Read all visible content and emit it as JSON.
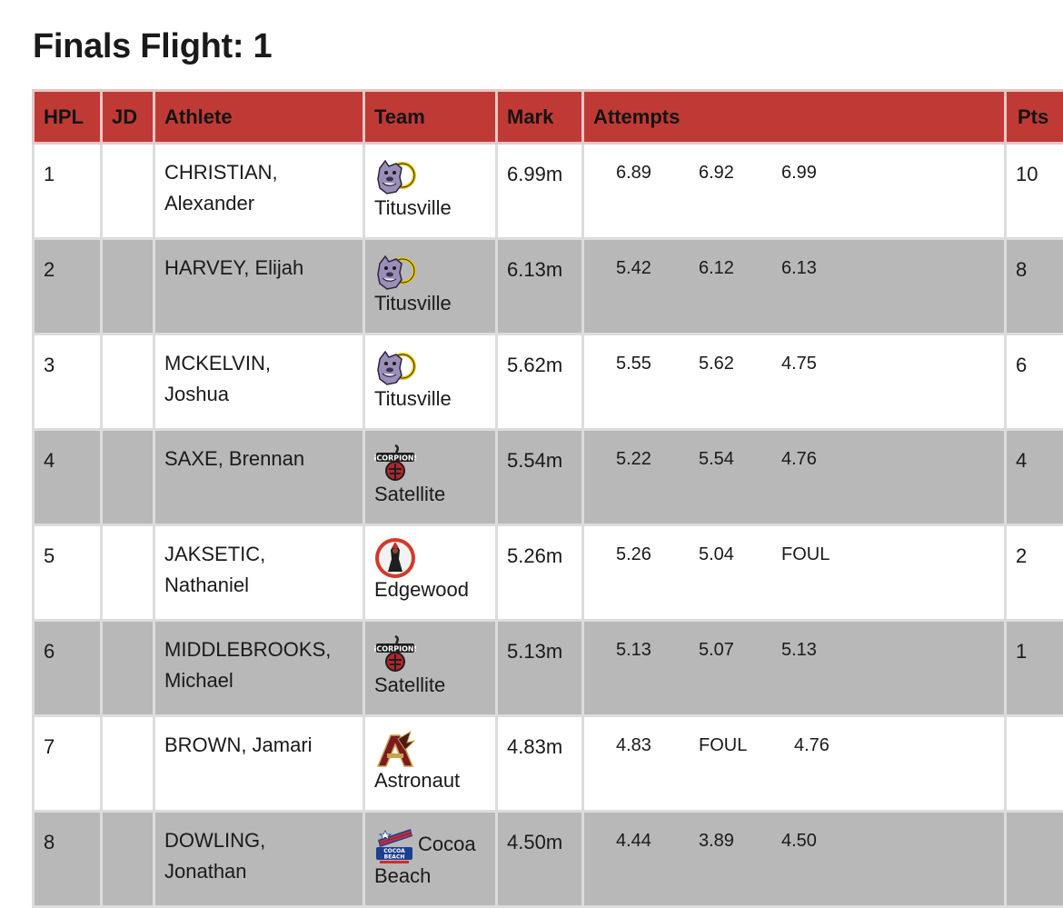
{
  "page_title": "Finals Flight: 1",
  "headers": {
    "hpl": "HPL",
    "jd": "JD",
    "athlete": "Athlete",
    "team": "Team",
    "mark": "Mark",
    "attempts": "Attempts",
    "pts": "Pts"
  },
  "rows": [
    {
      "hpl": "1",
      "jd": "",
      "last": "CHRISTIAN,",
      "first": "Alexander",
      "team": "Titusville",
      "team_icon": "bulldog-logo-icon",
      "mark": "6.99m",
      "attempts": [
        "6.89",
        "6.92",
        "6.99"
      ],
      "pts": "10"
    },
    {
      "hpl": "2",
      "jd": "",
      "last": "HARVEY, Elijah",
      "first": "",
      "team": "Titusville",
      "team_icon": "bulldog-logo-icon",
      "mark": "6.13m",
      "attempts": [
        "5.42",
        "6.12",
        "6.13"
      ],
      "pts": "8"
    },
    {
      "hpl": "3",
      "jd": "",
      "last": "MCKELVIN,",
      "first": "Joshua",
      "team": "Titusville",
      "team_icon": "bulldog-logo-icon",
      "mark": "5.62m",
      "attempts": [
        "5.55",
        "5.62",
        "4.75"
      ],
      "pts": "6"
    },
    {
      "hpl": "4",
      "jd": "",
      "last": "SAXE, Brennan",
      "first": "",
      "team": "Satellite",
      "team_icon": "scorpions-logo-icon",
      "mark": "5.54m",
      "attempts": [
        "5.22",
        "5.54",
        "4.76"
      ],
      "pts": "4"
    },
    {
      "hpl": "5",
      "jd": "",
      "last": "JAKSETIC,",
      "first": "Nathaniel",
      "team": "Edgewood",
      "team_icon": "edgewood-logo-icon",
      "mark": "5.26m",
      "attempts": [
        "5.26",
        "5.04",
        "FOUL"
      ],
      "pts": "2"
    },
    {
      "hpl": "6",
      "jd": "",
      "last": "MIDDLEBROOKS,",
      "first": "Michael",
      "team": "Satellite",
      "team_icon": "scorpions-logo-icon",
      "mark": "5.13m",
      "attempts": [
        "5.13",
        "5.07",
        "5.13"
      ],
      "pts": "1"
    },
    {
      "hpl": "7",
      "jd": "",
      "last": "BROWN, Jamari",
      "first": "",
      "team": "Astronaut",
      "team_icon": "astronaut-logo-icon",
      "mark": "4.83m",
      "attempts": [
        "4.83",
        "FOUL",
        "4.76"
      ],
      "pts": ""
    },
    {
      "hpl": "8",
      "jd": "",
      "last": "DOWLING,",
      "first": "Jonathan",
      "team_line1": "Cocoa",
      "team_line2": "Beach",
      "team_icon": "cocoa-beach-logo-icon",
      "mark": "4.50m",
      "attempts": [
        "4.44",
        "3.89",
        "4.50"
      ],
      "pts": ""
    }
  ],
  "colors": {
    "header_bg": "#c03a35",
    "stripe": "#b8b8b8",
    "border": "#dcdcdc"
  }
}
